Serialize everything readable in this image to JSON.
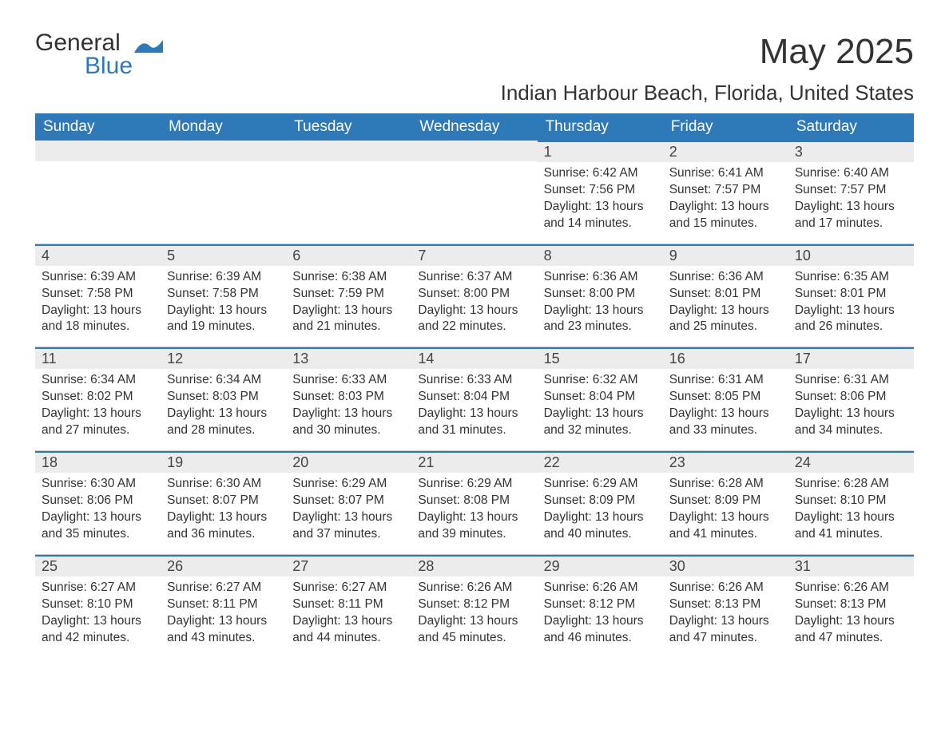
{
  "brand": {
    "name_part1": "General",
    "name_part2": "Blue",
    "accent_color": "#2f79b9"
  },
  "title": "May 2025",
  "location": "Indian Harbour Beach, Florida, United States",
  "daynames": [
    "Sunday",
    "Monday",
    "Tuesday",
    "Wednesday",
    "Thursday",
    "Friday",
    "Saturday"
  ],
  "colors": {
    "header_bg": "#2f79b9",
    "header_text": "#ffffff",
    "day_band_bg": "#ececec",
    "text": "#333333",
    "background": "#ffffff"
  },
  "labels": {
    "sunrise": "Sunrise:",
    "sunset": "Sunset:",
    "daylight": "Daylight:"
  },
  "weeks": [
    [
      {
        "blank": true
      },
      {
        "blank": true
      },
      {
        "blank": true
      },
      {
        "blank": true
      },
      {
        "n": "1",
        "sunrise": "6:42 AM",
        "sunset": "7:56 PM",
        "daylight_l1": "13 hours",
        "daylight_l2": "and 14 minutes."
      },
      {
        "n": "2",
        "sunrise": "6:41 AM",
        "sunset": "7:57 PM",
        "daylight_l1": "13 hours",
        "daylight_l2": "and 15 minutes."
      },
      {
        "n": "3",
        "sunrise": "6:40 AM",
        "sunset": "7:57 PM",
        "daylight_l1": "13 hours",
        "daylight_l2": "and 17 minutes."
      }
    ],
    [
      {
        "n": "4",
        "sunrise": "6:39 AM",
        "sunset": "7:58 PM",
        "daylight_l1": "13 hours",
        "daylight_l2": "and 18 minutes."
      },
      {
        "n": "5",
        "sunrise": "6:39 AM",
        "sunset": "7:58 PM",
        "daylight_l1": "13 hours",
        "daylight_l2": "and 19 minutes."
      },
      {
        "n": "6",
        "sunrise": "6:38 AM",
        "sunset": "7:59 PM",
        "daylight_l1": "13 hours",
        "daylight_l2": "and 21 minutes."
      },
      {
        "n": "7",
        "sunrise": "6:37 AM",
        "sunset": "8:00 PM",
        "daylight_l1": "13 hours",
        "daylight_l2": "and 22 minutes."
      },
      {
        "n": "8",
        "sunrise": "6:36 AM",
        "sunset": "8:00 PM",
        "daylight_l1": "13 hours",
        "daylight_l2": "and 23 minutes."
      },
      {
        "n": "9",
        "sunrise": "6:36 AM",
        "sunset": "8:01 PM",
        "daylight_l1": "13 hours",
        "daylight_l2": "and 25 minutes."
      },
      {
        "n": "10",
        "sunrise": "6:35 AM",
        "sunset": "8:01 PM",
        "daylight_l1": "13 hours",
        "daylight_l2": "and 26 minutes."
      }
    ],
    [
      {
        "n": "11",
        "sunrise": "6:34 AM",
        "sunset": "8:02 PM",
        "daylight_l1": "13 hours",
        "daylight_l2": "and 27 minutes."
      },
      {
        "n": "12",
        "sunrise": "6:34 AM",
        "sunset": "8:03 PM",
        "daylight_l1": "13 hours",
        "daylight_l2": "and 28 minutes."
      },
      {
        "n": "13",
        "sunrise": "6:33 AM",
        "sunset": "8:03 PM",
        "daylight_l1": "13 hours",
        "daylight_l2": "and 30 minutes."
      },
      {
        "n": "14",
        "sunrise": "6:33 AM",
        "sunset": "8:04 PM",
        "daylight_l1": "13 hours",
        "daylight_l2": "and 31 minutes."
      },
      {
        "n": "15",
        "sunrise": "6:32 AM",
        "sunset": "8:04 PM",
        "daylight_l1": "13 hours",
        "daylight_l2": "and 32 minutes."
      },
      {
        "n": "16",
        "sunrise": "6:31 AM",
        "sunset": "8:05 PM",
        "daylight_l1": "13 hours",
        "daylight_l2": "and 33 minutes."
      },
      {
        "n": "17",
        "sunrise": "6:31 AM",
        "sunset": "8:06 PM",
        "daylight_l1": "13 hours",
        "daylight_l2": "and 34 minutes."
      }
    ],
    [
      {
        "n": "18",
        "sunrise": "6:30 AM",
        "sunset": "8:06 PM",
        "daylight_l1": "13 hours",
        "daylight_l2": "and 35 minutes."
      },
      {
        "n": "19",
        "sunrise": "6:30 AM",
        "sunset": "8:07 PM",
        "daylight_l1": "13 hours",
        "daylight_l2": "and 36 minutes."
      },
      {
        "n": "20",
        "sunrise": "6:29 AM",
        "sunset": "8:07 PM",
        "daylight_l1": "13 hours",
        "daylight_l2": "and 37 minutes."
      },
      {
        "n": "21",
        "sunrise": "6:29 AM",
        "sunset": "8:08 PM",
        "daylight_l1": "13 hours",
        "daylight_l2": "and 39 minutes."
      },
      {
        "n": "22",
        "sunrise": "6:29 AM",
        "sunset": "8:09 PM",
        "daylight_l1": "13 hours",
        "daylight_l2": "and 40 minutes."
      },
      {
        "n": "23",
        "sunrise": "6:28 AM",
        "sunset": "8:09 PM",
        "daylight_l1": "13 hours",
        "daylight_l2": "and 41 minutes."
      },
      {
        "n": "24",
        "sunrise": "6:28 AM",
        "sunset": "8:10 PM",
        "daylight_l1": "13 hours",
        "daylight_l2": "and 41 minutes."
      }
    ],
    [
      {
        "n": "25",
        "sunrise": "6:27 AM",
        "sunset": "8:10 PM",
        "daylight_l1": "13 hours",
        "daylight_l2": "and 42 minutes."
      },
      {
        "n": "26",
        "sunrise": "6:27 AM",
        "sunset": "8:11 PM",
        "daylight_l1": "13 hours",
        "daylight_l2": "and 43 minutes."
      },
      {
        "n": "27",
        "sunrise": "6:27 AM",
        "sunset": "8:11 PM",
        "daylight_l1": "13 hours",
        "daylight_l2": "and 44 minutes."
      },
      {
        "n": "28",
        "sunrise": "6:26 AM",
        "sunset": "8:12 PM",
        "daylight_l1": "13 hours",
        "daylight_l2": "and 45 minutes."
      },
      {
        "n": "29",
        "sunrise": "6:26 AM",
        "sunset": "8:12 PM",
        "daylight_l1": "13 hours",
        "daylight_l2": "and 46 minutes."
      },
      {
        "n": "30",
        "sunrise": "6:26 AM",
        "sunset": "8:13 PM",
        "daylight_l1": "13 hours",
        "daylight_l2": "and 47 minutes."
      },
      {
        "n": "31",
        "sunrise": "6:26 AM",
        "sunset": "8:13 PM",
        "daylight_l1": "13 hours",
        "daylight_l2": "and 47 minutes."
      }
    ]
  ]
}
